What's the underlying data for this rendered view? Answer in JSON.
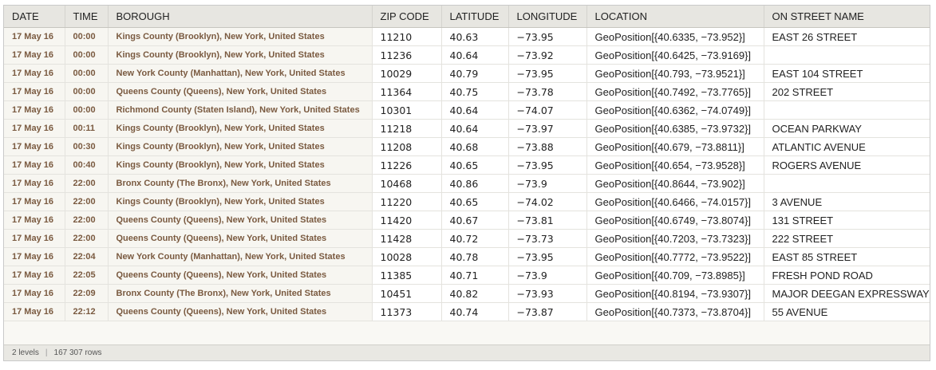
{
  "columns": [
    "DATE",
    "TIME",
    "BOROUGH",
    "ZIP CODE",
    "LATITUDE",
    "LONGITUDE",
    "LOCATION",
    "ON STREET NAME"
  ],
  "rows": [
    [
      "17 May 16",
      "00:00",
      "Kings County (Brooklyn), New York, United States",
      "11210",
      "40.63",
      "−73.95",
      "GeoPosition[{40.6335, −73.952}]",
      "EAST 26 STREET"
    ],
    [
      "17 May 16",
      "00:00",
      "Kings County (Brooklyn), New York, United States",
      "11236",
      "40.64",
      "−73.92",
      "GeoPosition[{40.6425, −73.9169}]",
      ""
    ],
    [
      "17 May 16",
      "00:00",
      "New York County (Manhattan), New York, United States",
      "10029",
      "40.79",
      "−73.95",
      "GeoPosition[{40.793, −73.9521}]",
      "EAST 104 STREET"
    ],
    [
      "17 May 16",
      "00:00",
      "Queens County (Queens), New York, United States",
      "11364",
      "40.75",
      "−73.78",
      "GeoPosition[{40.7492, −73.7765}]",
      "202 STREET"
    ],
    [
      "17 May 16",
      "00:00",
      "Richmond County (Staten Island), New York, United States",
      "10301",
      "40.64",
      "−74.07",
      "GeoPosition[{40.6362, −74.0749}]",
      ""
    ],
    [
      "17 May 16",
      "00:11",
      "Kings County (Brooklyn), New York, United States",
      "11218",
      "40.64",
      "−73.97",
      "GeoPosition[{40.6385, −73.9732}]",
      "OCEAN PARKWAY"
    ],
    [
      "17 May 16",
      "00:30",
      "Kings County (Brooklyn), New York, United States",
      "11208",
      "40.68",
      "−73.88",
      "GeoPosition[{40.679, −73.8811}]",
      "ATLANTIC AVENUE"
    ],
    [
      "17 May 16",
      "00:40",
      "Kings County (Brooklyn), New York, United States",
      "11226",
      "40.65",
      "−73.95",
      "GeoPosition[{40.654, −73.9528}]",
      "ROGERS AVENUE"
    ],
    [
      "17 May 16",
      "22:00",
      "Bronx County (The Bronx), New York, United States",
      "10468",
      "40.86",
      "−73.9",
      "GeoPosition[{40.8644, −73.902}]",
      ""
    ],
    [
      "17 May 16",
      "22:00",
      "Kings County (Brooklyn), New York, United States",
      "11220",
      "40.65",
      "−74.02",
      "GeoPosition[{40.6466, −74.0157}]",
      "3 AVENUE"
    ],
    [
      "17 May 16",
      "22:00",
      "Queens County (Queens), New York, United States",
      "11420",
      "40.67",
      "−73.81",
      "GeoPosition[{40.6749, −73.8074}]",
      "131 STREET"
    ],
    [
      "17 May 16",
      "22:00",
      "Queens County (Queens), New York, United States",
      "11428",
      "40.72",
      "−73.73",
      "GeoPosition[{40.7203, −73.7323}]",
      "222 STREET"
    ],
    [
      "17 May 16",
      "22:04",
      "New York County (Manhattan), New York, United States",
      "10028",
      "40.78",
      "−73.95",
      "GeoPosition[{40.7772, −73.9522}]",
      "EAST 85 STREET"
    ],
    [
      "17 May 16",
      "22:05",
      "Queens County (Queens), New York, United States",
      "11385",
      "40.71",
      "−73.9",
      "GeoPosition[{40.709, −73.8985}]",
      "FRESH POND ROAD"
    ],
    [
      "17 May 16",
      "22:09",
      "Bronx County (The Bronx), New York, United States",
      "10451",
      "40.82",
      "−73.93",
      "GeoPosition[{40.8194, −73.9307}]",
      "MAJOR DEEGAN EXPRESSWAY"
    ],
    [
      "17 May 16",
      "22:12",
      "Queens County (Queens), New York, United States",
      "11373",
      "40.74",
      "−73.87",
      "GeoPosition[{40.7373, −73.8704}]",
      "55 AVENUE"
    ]
  ],
  "status": {
    "levels": "2 levels",
    "rows": "167 307 rows"
  }
}
